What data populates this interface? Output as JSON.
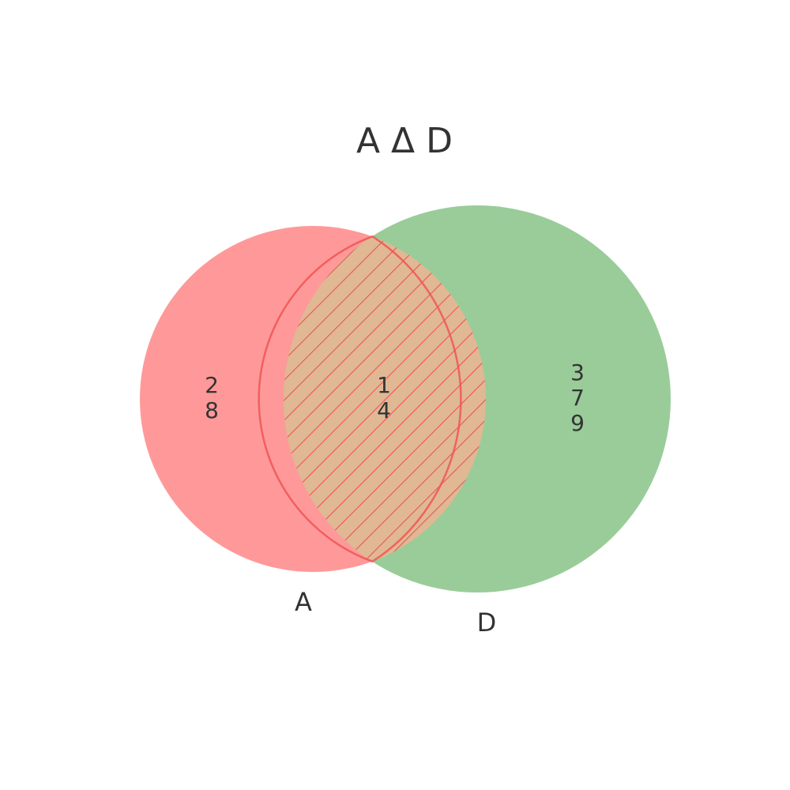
{
  "title": "A Δ D",
  "sets": [
    {
      "name": "A",
      "color": "#ff9999"
    },
    {
      "name": "D",
      "color": "#99cc99"
    }
  ],
  "regions": {
    "only_a": [
      "2",
      "8"
    ],
    "intersection": [
      "1",
      "4"
    ],
    "only_d": [
      "3",
      "7",
      "9"
    ]
  },
  "intersection_fill": "#e0b894",
  "hatch_color": "#ee5555",
  "text_color": "#333333"
}
